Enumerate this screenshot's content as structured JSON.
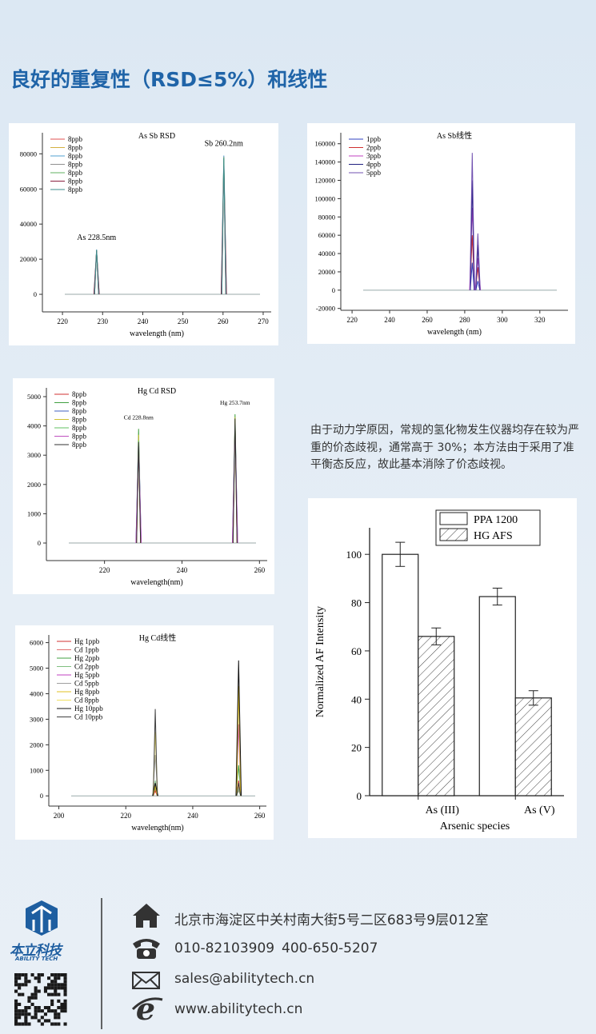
{
  "header": {
    "title": "良好的重复性（RSD≤5%）和线性"
  },
  "figures": [
    {
      "type": "spectrum",
      "title": "As Sb RSD",
      "xlabel": "wavelength (nm)",
      "xlim": [
        215,
        272
      ],
      "xticks": [
        220,
        230,
        240,
        250,
        260,
        270
      ],
      "ylim": [
        -10000,
        92000
      ],
      "yticks": [
        0,
        20000,
        40000,
        60000,
        80000
      ],
      "peaks": [
        228.5,
        260.2
      ],
      "annotations": [
        "As 228.5nm",
        "Sb 260.2nm"
      ],
      "series": [
        {
          "name": "8ppb",
          "color": "#e05050",
          "values": [
            25200,
            78500
          ]
        },
        {
          "name": "8ppb",
          "color": "#d4b040",
          "values": [
            24800,
            77000
          ]
        },
        {
          "name": "8ppb",
          "color": "#50a0d0",
          "values": [
            25500,
            79000
          ]
        },
        {
          "name": "8ppb",
          "color": "#909090",
          "values": [
            24500,
            76000
          ]
        },
        {
          "name": "8ppb",
          "color": "#60b060",
          "values": [
            25000,
            78000
          ]
        },
        {
          "name": "8ppb",
          "color": "#8a2040",
          "values": [
            24700,
            73000
          ]
        },
        {
          "name": "8ppb",
          "color": "#3c8c8c",
          "values": [
            25300,
            77500
          ]
        }
      ]
    },
    {
      "type": "spectrum",
      "title": "As Sb线性",
      "xlabel": "wavelength (nm)",
      "xlim": [
        214,
        335
      ],
      "xticks": [
        220,
        240,
        260,
        280,
        300,
        320
      ],
      "ylim": [
        -22000,
        172000
      ],
      "yticks": [
        -20000,
        0,
        20000,
        40000,
        60000,
        80000,
        100000,
        120000,
        140000,
        160000
      ],
      "peaks": [
        284,
        287
      ],
      "series": [
        {
          "name": "1ppb",
          "color": "#3040c0",
          "values": [
            30000,
            10000
          ]
        },
        {
          "name": "2ppb",
          "color": "#d03030",
          "values": [
            60000,
            25000
          ]
        },
        {
          "name": "3ppb",
          "color": "#c040c0",
          "values": [
            90000,
            35000
          ]
        },
        {
          "name": "4ppb",
          "color": "#202080",
          "values": [
            120000,
            50000
          ]
        },
        {
          "name": "5ppb",
          "color": "#7050b0",
          "values": [
            150000,
            62000
          ]
        }
      ]
    },
    {
      "type": "spectrum",
      "title": "Hg Cd RSD",
      "xlabel": "wavelength(nm)",
      "xlim": [
        205,
        262
      ],
      "xticks": [
        220,
        240,
        260
      ],
      "ylim": [
        -600,
        5300
      ],
      "yticks": [
        0,
        1000,
        2000,
        3000,
        4000,
        5000
      ],
      "peaks": [
        228.8,
        253.7
      ],
      "annotations": [
        "Cd 228.8nm",
        "Hg 253.7nm"
      ],
      "series": [
        {
          "name": "8ppb",
          "color": "#d03030",
          "values": [
            3400,
            4200
          ]
        },
        {
          "name": "8ppb",
          "color": "#40a040",
          "values": [
            3900,
            4400
          ]
        },
        {
          "name": "8ppb",
          "color": "#4060c0",
          "values": [
            3600,
            4100
          ]
        },
        {
          "name": "8ppb",
          "color": "#d0c030",
          "values": [
            3700,
            4300
          ]
        },
        {
          "name": "8ppb",
          "color": "#60c060",
          "values": [
            3500,
            4000
          ]
        },
        {
          "name": "8ppb",
          "color": "#c050c0",
          "values": [
            3300,
            3900
          ]
        },
        {
          "name": "8ppb",
          "color": "#303030",
          "values": [
            3450,
            4250
          ]
        }
      ]
    },
    {
      "type": "spectrum",
      "title": "Hg Cd线性",
      "xlabel": "wavelength(nm)",
      "xlim": [
        197,
        262
      ],
      "xticks": [
        200,
        220,
        240,
        260
      ],
      "ylim": [
        -400,
        6300
      ],
      "yticks": [
        0,
        1000,
        2000,
        3000,
        4000,
        5000,
        6000
      ],
      "peaks": [
        228.8,
        253.7
      ],
      "series": [
        {
          "name": "Hg 1ppb",
          "color": "#d03030",
          "values": [
            200,
            600
          ]
        },
        {
          "name": "Cd 1ppb",
          "color": "#e07070",
          "values": [
            300,
            200
          ]
        },
        {
          "name": "Hg 2ppb",
          "color": "#40a040",
          "values": [
            300,
            1200
          ]
        },
        {
          "name": "Cd 2ppb",
          "color": "#80c080",
          "values": [
            600,
            250
          ]
        },
        {
          "name": "Hg 5ppb",
          "color": "#c040c0",
          "values": [
            400,
            2800
          ]
        },
        {
          "name": "Cd 5ppb",
          "color": "#a0a0a0",
          "values": [
            1600,
            300
          ]
        },
        {
          "name": "Hg 8ppb",
          "color": "#e0c020",
          "values": [
            400,
            4300
          ]
        },
        {
          "name": "Cd 8ppb",
          "color": "#f0e060",
          "values": [
            2500,
            400
          ]
        },
        {
          "name": "Hg 10ppb",
          "color": "#101010",
          "values": [
            500,
            5300
          ]
        },
        {
          "name": "Cd 10ppb",
          "color": "#404040",
          "values": [
            3400,
            500
          ]
        }
      ]
    },
    {
      "type": "bar",
      "xlabel": "Arsenic species",
      "ylabel": "Normalized AF Intensity",
      "categories": [
        "As (III)",
        "As (V)"
      ],
      "ylim": [
        0,
        111
      ],
      "yticks": [
        0,
        20,
        40,
        60,
        80,
        100
      ],
      "series": [
        {
          "name": "PPA 1200",
          "pattern": "none",
          "values": [
            100,
            82.5
          ],
          "errors": [
            5,
            3.5
          ]
        },
        {
          "name": "HG AFS",
          "pattern": "hatch",
          "values": [
            66,
            40.5
          ],
          "errors": [
            3.5,
            3
          ]
        }
      ]
    }
  ],
  "text": {
    "paragraph": "由于动力学原因，常规的氢化物发生仪器均存在较为严重的价态歧视，通常高于 30%；本方法由于采用了准平衡态反应，故此基本消除了价态歧视。"
  },
  "footer": {
    "logo_name": "本立科技",
    "logo_name_en": "ABILITY TECH",
    "address": "北京市海淀区中关村南大街5号二区683号9层012室",
    "phone_1": "010-82103909",
    "phone_2": "400-650-5207",
    "email": "sales@abilitytech.cn",
    "website": "www.abilitytech.cn"
  }
}
